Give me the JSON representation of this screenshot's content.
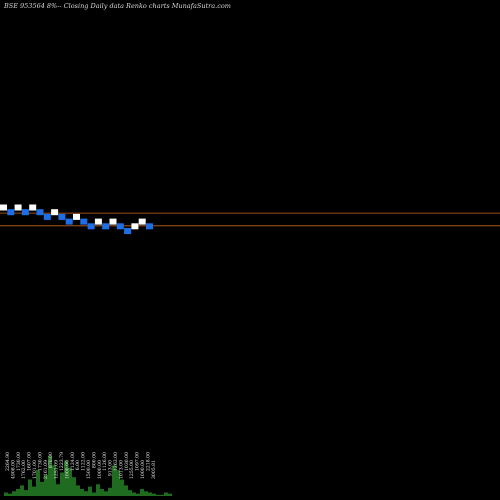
{
  "header": {
    "title": "BSE 953564  8%--  Closing Daily data  Renko  charts MunafaSutra.com"
  },
  "colors": {
    "background": "#000000",
    "up_brick": "#ffffff",
    "down_brick": "#1e6fe6",
    "reference_line": "#c8641e",
    "volume_bar": "#1f6b1f",
    "volume_label": "#e8e8e8"
  },
  "chart_data": {
    "type": "renko",
    "title": "BSE 953564  8%--  Closing Daily data  Renko  charts MunafaSutra.com",
    "grid": false,
    "bricks": [
      {
        "dir": "up",
        "level": 0
      },
      {
        "dir": "down",
        "level": 1
      },
      {
        "dir": "up",
        "level": 0
      },
      {
        "dir": "down",
        "level": 1
      },
      {
        "dir": "up",
        "level": 0
      },
      {
        "dir": "down",
        "level": 1
      },
      {
        "dir": "down",
        "level": 2
      },
      {
        "dir": "up",
        "level": 1
      },
      {
        "dir": "down",
        "level": 2
      },
      {
        "dir": "down",
        "level": 3
      },
      {
        "dir": "up",
        "level": 2
      },
      {
        "dir": "down",
        "level": 3
      },
      {
        "dir": "down",
        "level": 4
      },
      {
        "dir": "up",
        "level": 3
      },
      {
        "dir": "down",
        "level": 4
      },
      {
        "dir": "up",
        "level": 3
      },
      {
        "dir": "down",
        "level": 4
      },
      {
        "dir": "down",
        "level": 5
      },
      {
        "dir": "up",
        "level": 4
      },
      {
        "dir": "up",
        "level": 3
      },
      {
        "dir": "down",
        "level": 4
      }
    ],
    "reference_lines": [
      1.2,
      3.9
    ],
    "volume_labels": [
      "2264.90",
      "4908.00",
      "1730.00",
      "1762.00",
      "1607.00",
      "1701.00",
      "1730.00",
      "2161.09",
      "870.00",
      "1251.09",
      "1223.79",
      "1000.00",
      "1124.00",
      "6.00",
      "1122.00",
      "1500.00",
      "800.00",
      "1000.00",
      "1126.00",
      "913.00",
      "1263.00",
      "1013.00",
      "1030.00",
      "1255.00",
      "1097.00",
      "1000.00",
      "2218.00",
      "3005.81"
    ],
    "volume": [
      3,
      2,
      4,
      6,
      9,
      5,
      14,
      8,
      22,
      12,
      18,
      34,
      26,
      10,
      20,
      30,
      24,
      16,
      9,
      6,
      4,
      8,
      3,
      10,
      6,
      4,
      7,
      26,
      22,
      14,
      9,
      5,
      3,
      2,
      6,
      4,
      3,
      2,
      1,
      1,
      3,
      2
    ]
  }
}
